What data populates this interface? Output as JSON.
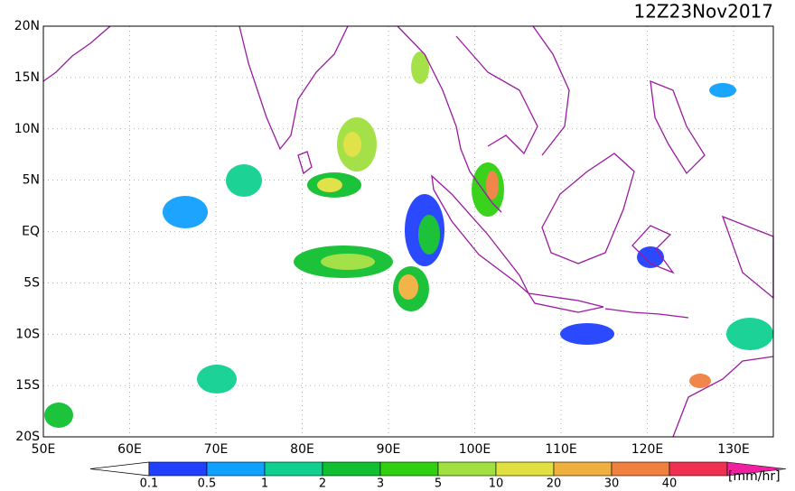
{
  "title": "12Z23Nov2017",
  "map": {
    "lat_labels": [
      "20N",
      "15N",
      "10N",
      "5N",
      "EQ",
      "5S",
      "10S",
      "15S",
      "20S"
    ],
    "lon_labels": [
      "50E",
      "60E",
      "70E",
      "80E",
      "90E",
      "100E",
      "110E",
      "120E",
      "130E"
    ]
  },
  "colorbar": {
    "levels": [
      0.1,
      0.5,
      1,
      2,
      3,
      5,
      10,
      20,
      30,
      40
    ],
    "colors": [
      "#ffffff",
      "#2040ff",
      "#10a0ff",
      "#10d090",
      "#10c030",
      "#30d010",
      "#a0e040",
      "#e0e040",
      "#f0b040",
      "#f08040",
      "#f03050",
      "#f020a0"
    ],
    "unit": "[mm/hr]"
  }
}
